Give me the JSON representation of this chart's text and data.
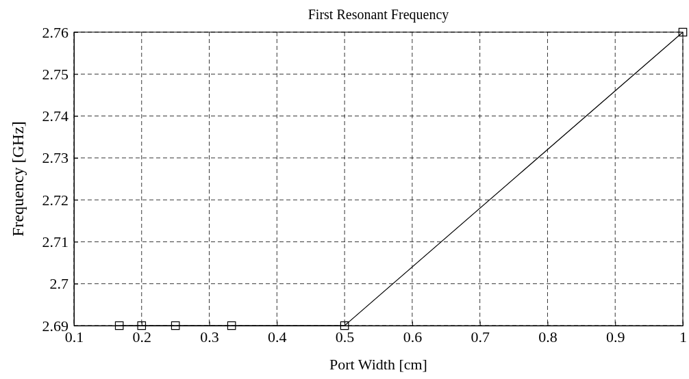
{
  "chart_data": {
    "type": "line",
    "title": "First Resonant Frequency",
    "xlabel": "Port Width [cm]",
    "ylabel": "Frequency [GHz]",
    "series": [
      {
        "color": "#000000",
        "x": [
          0.167,
          0.2,
          0.25,
          0.333,
          0.5,
          1
        ],
        "values": [
          2.69,
          2.69,
          2.69,
          2.69,
          2.69,
          2.76
        ]
      }
    ],
    "xlim": [
      0.1,
      1
    ],
    "xticks": [
      0.1,
      0.2,
      0.3,
      0.4,
      0.5,
      0.6,
      0.7,
      0.8,
      0.9,
      1
    ],
    "ylim": [
      2.69,
      2.76
    ],
    "yticks": [
      2.69,
      2.7,
      2.71,
      2.72,
      2.73,
      2.74,
      2.75,
      2.76
    ],
    "grid": true,
    "marker": "square",
    "line_style": "solid"
  }
}
